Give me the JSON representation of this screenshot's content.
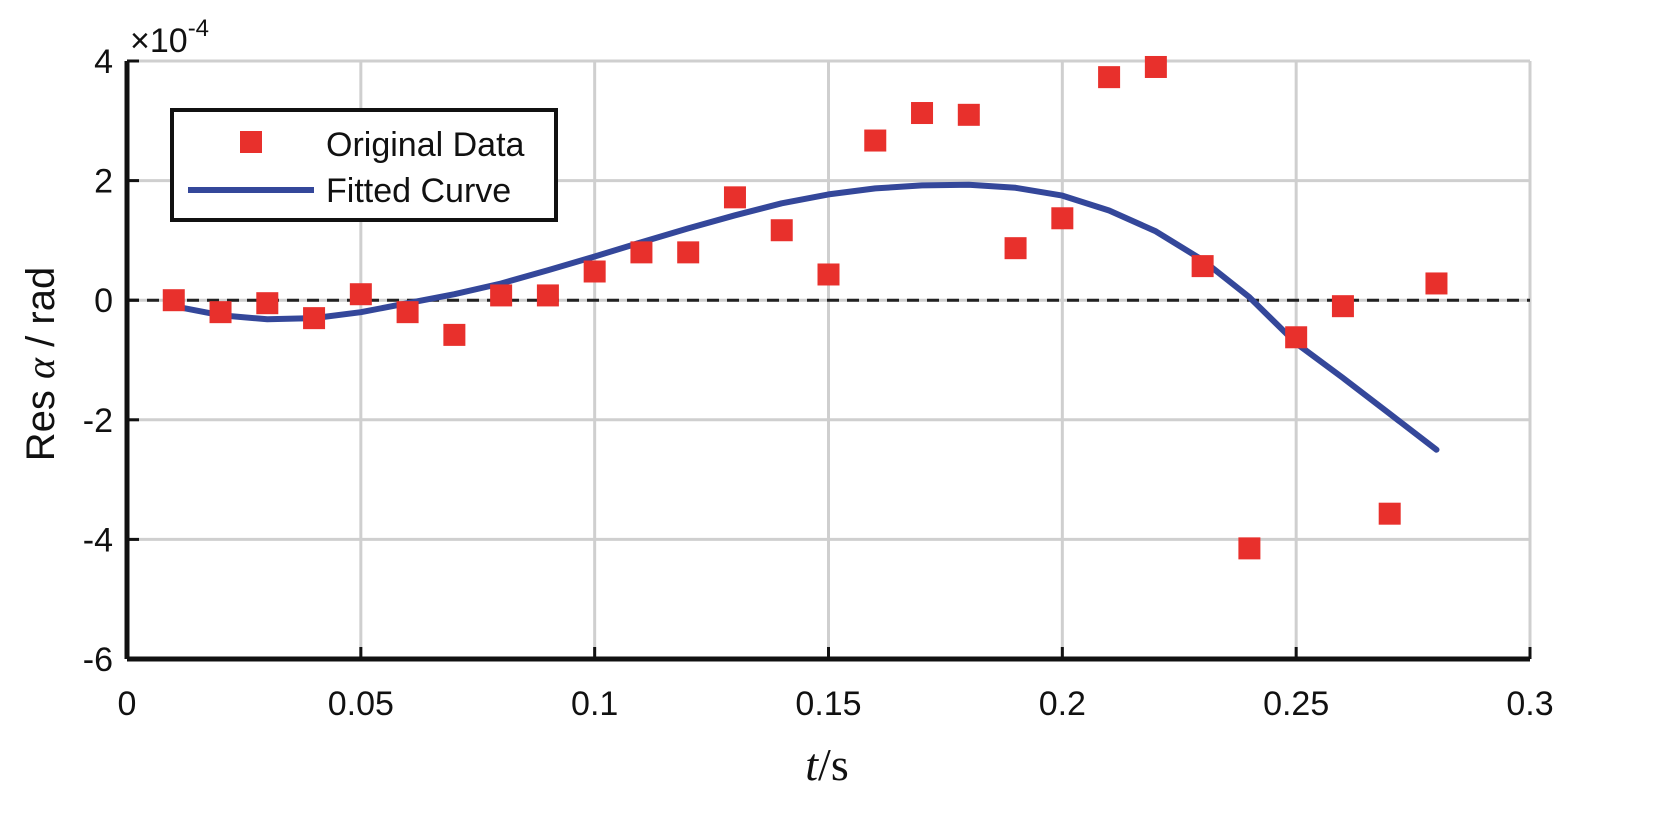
{
  "chart_data": {
    "type": "scatter",
    "xlabel_italic": "t",
    "xlabel_rest": "/s",
    "ylabel_prefix": "Res ",
    "ylabel_symbol": "α",
    "ylabel_suffix": " / rad",
    "y_multiplier_prefix": "×10",
    "y_multiplier_exp": "-4",
    "xlim": [
      0,
      0.3
    ],
    "ylim": [
      -6,
      4
    ],
    "x_ticks": [
      0,
      0.05,
      0.1,
      0.15,
      0.2,
      0.25,
      0.3
    ],
    "x_tick_labels": [
      "0",
      "0.05",
      "0.1",
      "0.15",
      "0.2",
      "0.25",
      "0.3"
    ],
    "y_ticks": [
      -6,
      -4,
      -2,
      0,
      2,
      4
    ],
    "y_tick_labels": [
      "-6",
      "-4",
      "-2",
      "0",
      "2",
      "4"
    ],
    "grid": true,
    "zero_line": "dashed",
    "legend_position": "top-left",
    "series": [
      {
        "name": "Original Data",
        "kind": "markers",
        "marker": "square",
        "color": "#e8302c",
        "x": [
          0.01,
          0.02,
          0.03,
          0.04,
          0.05,
          0.06,
          0.07,
          0.08,
          0.09,
          0.1,
          0.11,
          0.12,
          0.13,
          0.14,
          0.15,
          0.16,
          0.17,
          0.18,
          0.19,
          0.2,
          0.21,
          0.22,
          0.23,
          0.24,
          0.25,
          0.26,
          0.27,
          0.28
        ],
        "y": [
          0.0,
          -0.2,
          -0.05,
          -0.3,
          0.1,
          -0.2,
          -0.58,
          0.08,
          0.08,
          0.48,
          0.8,
          0.8,
          1.72,
          1.17,
          0.43,
          2.67,
          3.13,
          3.1,
          0.87,
          1.37,
          3.73,
          3.9,
          0.57,
          -4.15,
          -0.62,
          -0.1,
          -3.57,
          0.28
        ]
      },
      {
        "name": "Fitted Curve",
        "kind": "line",
        "color": "#34479a",
        "x": [
          0.01,
          0.02,
          0.03,
          0.04,
          0.05,
          0.06,
          0.07,
          0.08,
          0.09,
          0.1,
          0.11,
          0.12,
          0.13,
          0.14,
          0.15,
          0.16,
          0.17,
          0.18,
          0.19,
          0.2,
          0.21,
          0.22,
          0.23,
          0.24,
          0.25,
          0.26,
          0.27,
          0.28
        ],
        "y": [
          -0.1,
          -0.25,
          -0.32,
          -0.3,
          -0.2,
          -0.05,
          0.1,
          0.28,
          0.5,
          0.73,
          0.97,
          1.2,
          1.42,
          1.62,
          1.77,
          1.87,
          1.92,
          1.93,
          1.88,
          1.75,
          1.5,
          1.15,
          0.67,
          0.05,
          -0.72,
          -1.3,
          -1.9,
          -2.5
        ]
      }
    ]
  }
}
